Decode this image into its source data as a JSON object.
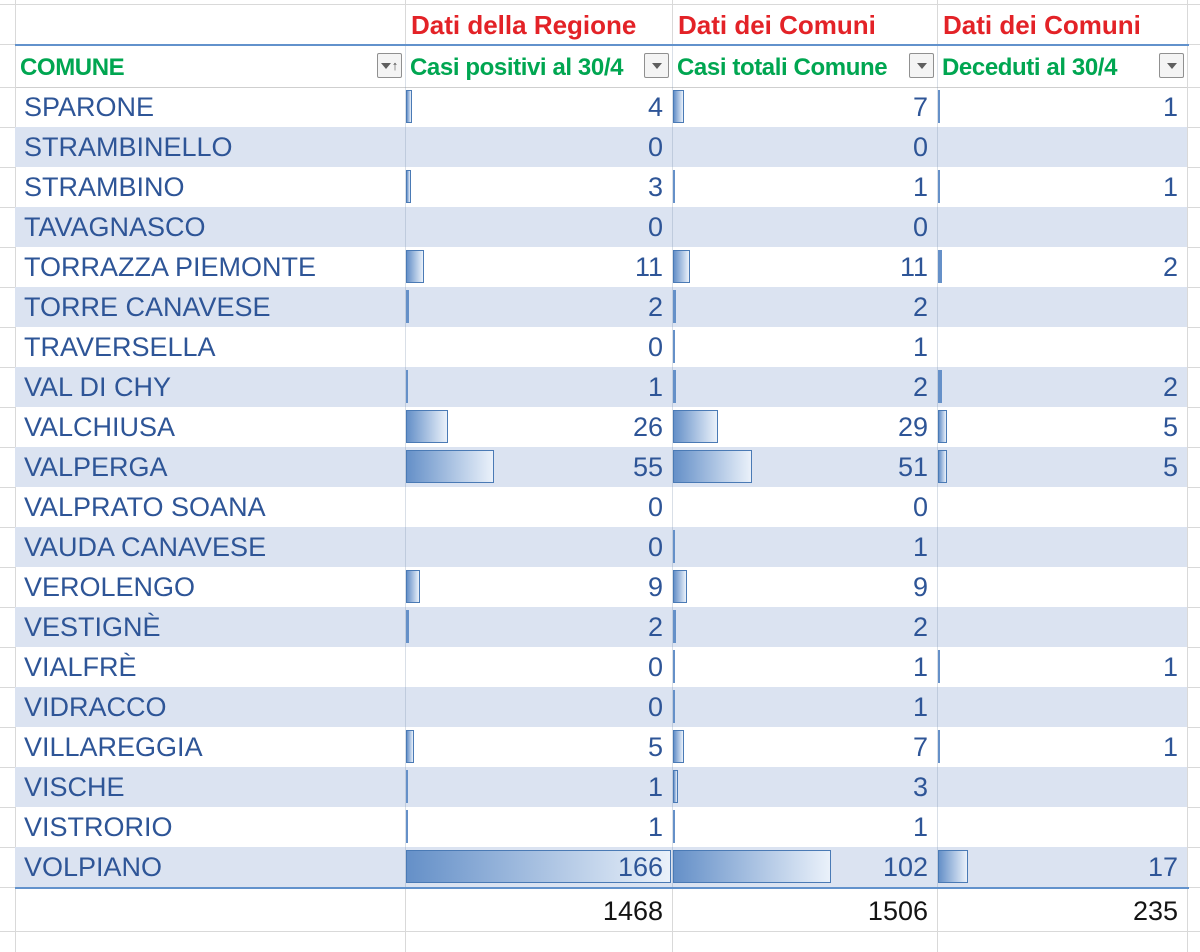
{
  "table": {
    "group_headers": [
      {
        "label": "Dati della Regione"
      },
      {
        "label": "Dati dei Comuni"
      },
      {
        "label": "Dati dei Comuni"
      }
    ],
    "columns": [
      {
        "label": "COMUNE",
        "filter_icon": "sort-ascending-filter-icon"
      },
      {
        "label": "Casi positivi al 30/4",
        "filter_icon": "dropdown-filter-icon"
      },
      {
        "label": "Casi totali Comune",
        "filter_icon": "dropdown-filter-icon"
      },
      {
        "label": "Deceduti al 30/4",
        "filter_icon": "dropdown-filter-icon"
      }
    ],
    "rows": [
      {
        "comune": "SPARONE",
        "casi_positivi": 4,
        "casi_totali": 7,
        "deceduti": 1
      },
      {
        "comune": "STRAMBINELLO",
        "casi_positivi": 0,
        "casi_totali": 0,
        "deceduti": null
      },
      {
        "comune": "STRAMBINO",
        "casi_positivi": 3,
        "casi_totali": 1,
        "deceduti": 1
      },
      {
        "comune": "TAVAGNASCO",
        "casi_positivi": 0,
        "casi_totali": 0,
        "deceduti": null
      },
      {
        "comune": "TORRAZZA PIEMONTE",
        "casi_positivi": 11,
        "casi_totali": 11,
        "deceduti": 2
      },
      {
        "comune": "TORRE CANAVESE",
        "casi_positivi": 2,
        "casi_totali": 2,
        "deceduti": null
      },
      {
        "comune": "TRAVERSELLA",
        "casi_positivi": 0,
        "casi_totali": 1,
        "deceduti": null
      },
      {
        "comune": "VAL DI CHY",
        "casi_positivi": 1,
        "casi_totali": 2,
        "deceduti": 2
      },
      {
        "comune": "VALCHIUSA",
        "casi_positivi": 26,
        "casi_totali": 29,
        "deceduti": 5
      },
      {
        "comune": "VALPERGA",
        "casi_positivi": 55,
        "casi_totali": 51,
        "deceduti": 5
      },
      {
        "comune": "VALPRATO SOANA",
        "casi_positivi": 0,
        "casi_totali": 0,
        "deceduti": null
      },
      {
        "comune": "VAUDA CANAVESE",
        "casi_positivi": 0,
        "casi_totali": 1,
        "deceduti": null
      },
      {
        "comune": "VEROLENGO",
        "casi_positivi": 9,
        "casi_totali": 9,
        "deceduti": null
      },
      {
        "comune": "VESTIGNÈ",
        "casi_positivi": 2,
        "casi_totali": 2,
        "deceduti": null
      },
      {
        "comune": "VIALFRÈ",
        "casi_positivi": 0,
        "casi_totali": 1,
        "deceduti": 1
      },
      {
        "comune": "VIDRACCO",
        "casi_positivi": 0,
        "casi_totali": 1,
        "deceduti": null
      },
      {
        "comune": "VILLAREGGIA",
        "casi_positivi": 5,
        "casi_totali": 7,
        "deceduti": 1
      },
      {
        "comune": "VISCHE",
        "casi_positivi": 1,
        "casi_totali": 3,
        "deceduti": null
      },
      {
        "comune": "VISTRORIO",
        "casi_positivi": 1,
        "casi_totali": 1,
        "deceduti": null
      },
      {
        "comune": "VOLPIANO",
        "casi_positivi": 166,
        "casi_totali": 102,
        "deceduti": 17
      }
    ],
    "totals": {
      "casi_positivi": "1468",
      "casi_totali": "1506",
      "deceduti": "235"
    }
  },
  "databars": {
    "scale_max_casi_positivi": 166,
    "scale_max_casi_totali": 170,
    "scale_max_deceduti": 140
  },
  "colors": {
    "header_red": "#e32227",
    "header_green": "#00a651",
    "body_blue": "#2e5597",
    "band_blue": "#dbe3f1",
    "bar_start": "#6590c8",
    "bar_end": "#eaf1fa",
    "bar_border": "#4a7ab5",
    "table_line_blue": "#6292cc",
    "totals_text": "#141414"
  }
}
